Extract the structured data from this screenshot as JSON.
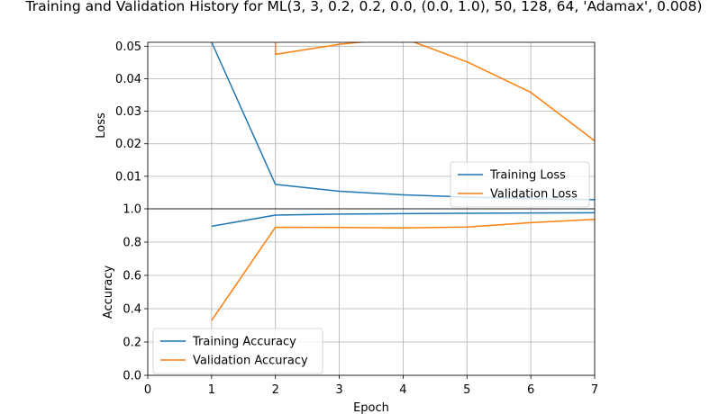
{
  "chart_data": [
    {
      "type": "line",
      "title": "Training and Validation History for ML(3, 3, 0.2, 0.2, 0.0, (0.0, 1.0), 50, 128, 64, 'Adamax', 0.008)",
      "xlabel": "",
      "ylabel": "Loss",
      "xlim": [
        0,
        7
      ],
      "ylim": [
        0,
        0.0512
      ],
      "yticks": [
        "0.01",
        "0.02",
        "0.03",
        "0.04",
        "0.05"
      ],
      "grid": true,
      "legend_position": "center-right",
      "series": [
        {
          "name": "Training Loss",
          "color": "#1f77b4",
          "x": [
            1,
            2,
            3,
            4,
            5,
            6,
            7
          ],
          "y": [
            0.0512,
            0.0075,
            0.0054,
            0.0043,
            0.0036,
            0.0031,
            0.0028
          ]
        },
        {
          "name": "Validation Loss",
          "color": "#ff7f0e",
          "x": [
            2,
            2,
            3,
            4,
            5,
            6,
            7
          ],
          "y": [
            0.0512,
            0.0475,
            0.0506,
            0.0525,
            0.0452,
            0.0358,
            0.0209
          ]
        }
      ]
    },
    {
      "type": "line",
      "title": "",
      "xlabel": "Epoch",
      "ylabel": "Accuracy",
      "xlim": [
        0,
        7
      ],
      "ylim": [
        0,
        1.0
      ],
      "xticks": [
        "0",
        "1",
        "2",
        "3",
        "4",
        "5",
        "6",
        "7"
      ],
      "yticks": [
        "0.0",
        "0.2",
        "0.4",
        "0.6",
        "0.8",
        "1.0"
      ],
      "grid": true,
      "legend_position": "lower-left",
      "series": [
        {
          "name": "Training Accuracy",
          "color": "#1f77b4",
          "x": [
            1,
            2,
            3,
            4,
            5,
            6,
            7
          ],
          "y": [
            0.895,
            0.962,
            0.968,
            0.971,
            0.973,
            0.975,
            0.976
          ]
        },
        {
          "name": "Validation Accuracy",
          "color": "#ff7f0e",
          "x": [
            1,
            2,
            3,
            4,
            5,
            6,
            7
          ],
          "y": [
            0.33,
            0.889,
            0.888,
            0.885,
            0.891,
            0.917,
            0.937
          ]
        }
      ]
    }
  ]
}
